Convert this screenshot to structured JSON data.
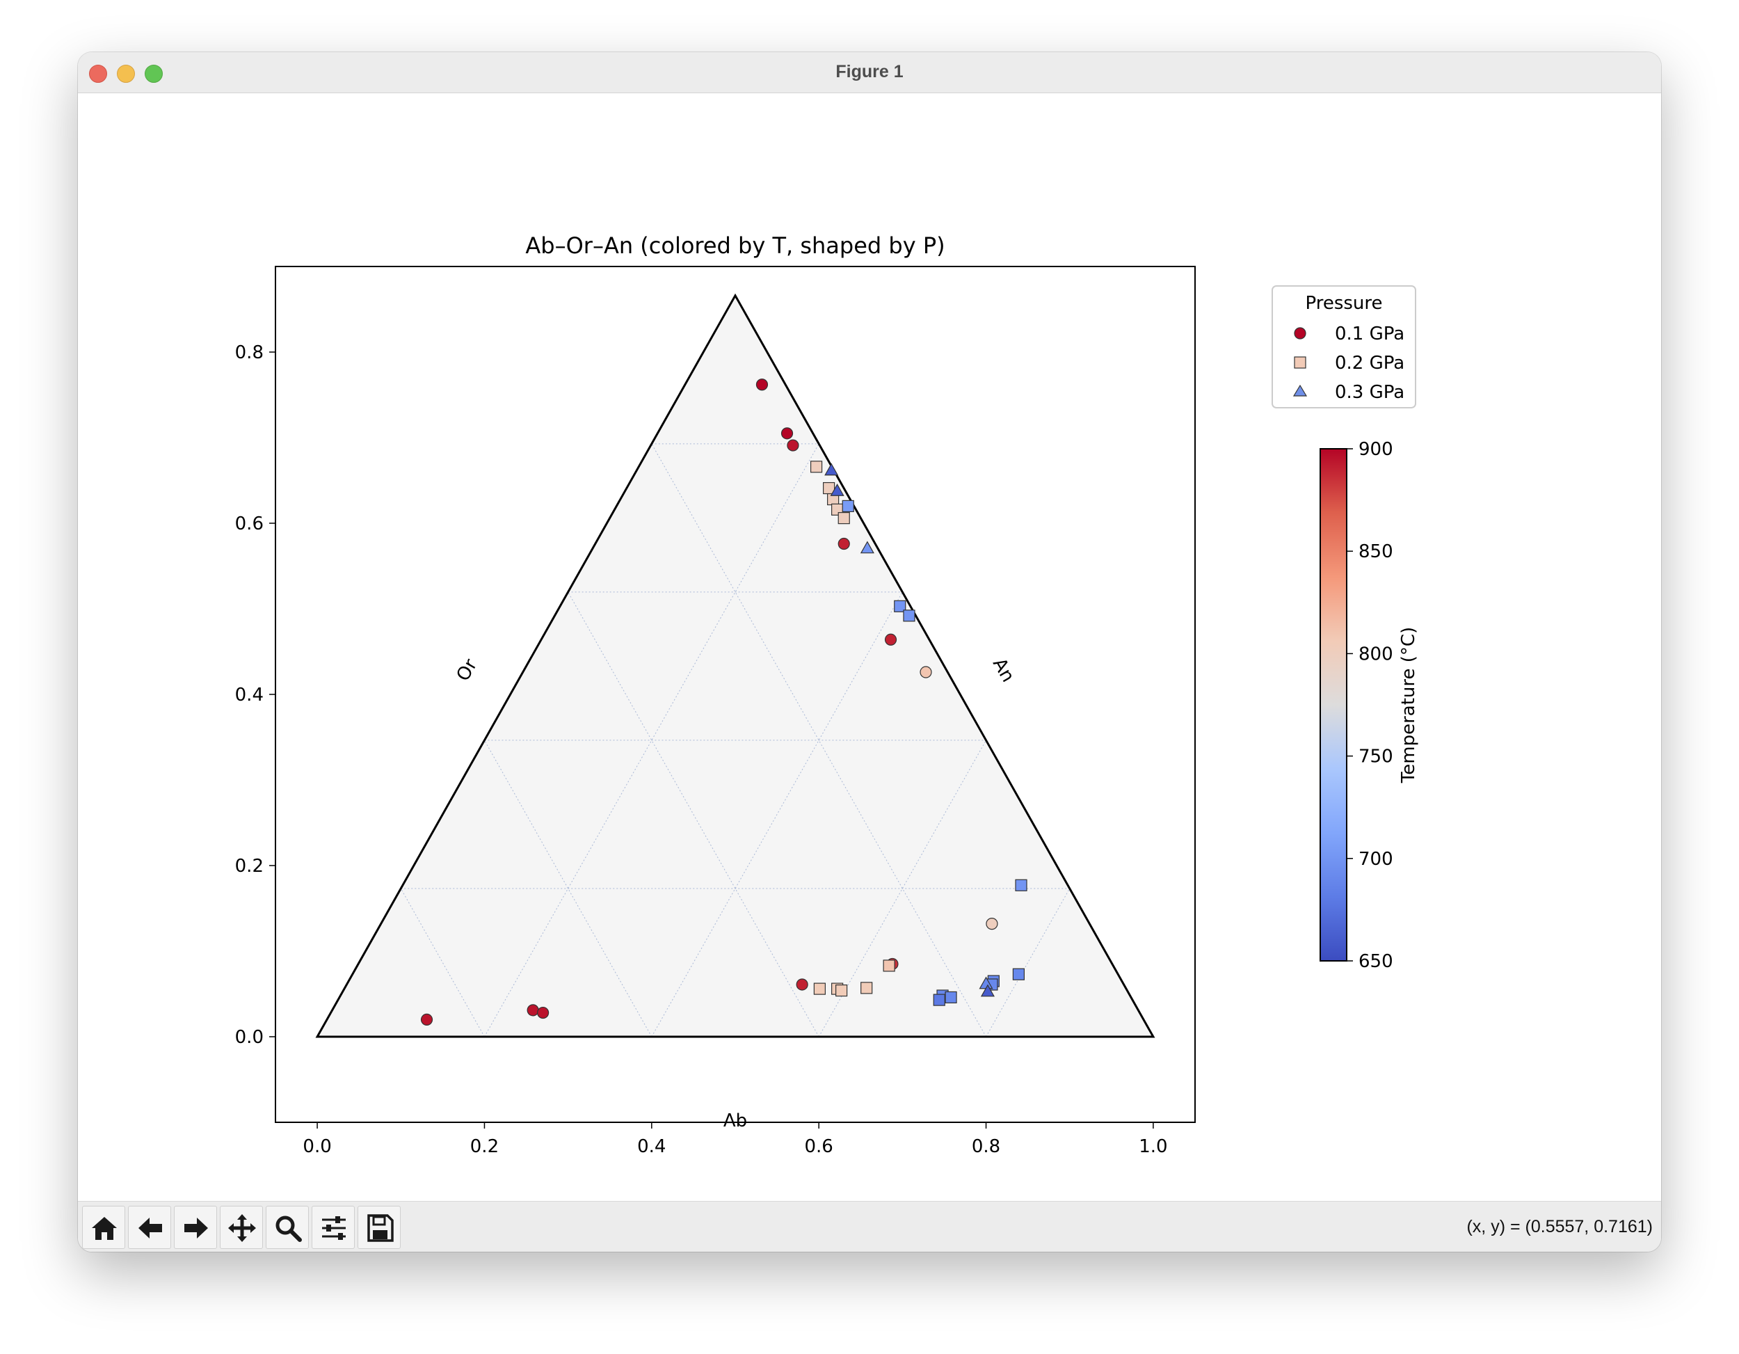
{
  "window": {
    "title": "Figure 1"
  },
  "toolbar": {
    "buttons": [
      {
        "name": "home-icon"
      },
      {
        "name": "back-arrow-icon"
      },
      {
        "name": "forward-arrow-icon"
      },
      {
        "name": "pan-move-icon"
      },
      {
        "name": "zoom-magnifier-icon"
      },
      {
        "name": "configure-subplots-icon"
      },
      {
        "name": "save-disk-icon"
      }
    ],
    "coords_readout": "(x, y) = (0.5557, 0.7161)"
  },
  "colors": {
    "p01": "#b40426",
    "p02_light": "#f2cbb7",
    "p03": "#3b4cc0",
    "axes_face": "#f5f5f5",
    "grid": "#a9b8d6"
  },
  "chart_data": {
    "type": "scatter",
    "title": "Ab–Or–An  (colored by T, shaped by P)",
    "xlim": [
      -0.05,
      1.05
    ],
    "ylim": [
      -0.1,
      0.9
    ],
    "xticks": [
      0.0,
      0.2,
      0.4,
      0.6,
      0.8,
      1.0
    ],
    "yticks": [
      0.0,
      0.2,
      0.4,
      0.6,
      0.8
    ],
    "x_tick_labels": [
      "0.0",
      "0.2",
      "0.4",
      "0.6",
      "0.8",
      "1.0"
    ],
    "y_tick_labels": [
      "0.0",
      "0.2",
      "0.4",
      "0.6",
      "0.8"
    ],
    "grid": true,
    "triangle_vertices": [
      [
        0,
        0
      ],
      [
        1,
        0
      ],
      [
        0.5,
        0.866
      ]
    ],
    "corner_labels": {
      "bottom": "Ab",
      "left": "Or",
      "right": "An"
    },
    "legend": {
      "title": "Pressure",
      "placement": "upper right outside axes",
      "entries": [
        {
          "label": "0.1 GPa",
          "marker": "circle"
        },
        {
          "label": "0.2 GPa",
          "marker": "square"
        },
        {
          "label": "0.3 GPa",
          "marker": "triangle"
        }
      ]
    },
    "colorbar": {
      "label": "Temperature (°C)",
      "min": 650,
      "max": 900,
      "ticks": [
        650,
        700,
        750,
        800,
        850,
        900
      ],
      "tick_labels": [
        "650",
        "700",
        "750",
        "800",
        "850",
        "900"
      ],
      "colormap": "coolwarm"
    },
    "series": [
      {
        "name": "0.1 GPa",
        "marker": "circle",
        "points": [
          {
            "x": 0.532,
            "y": 0.762,
            "T": 900
          },
          {
            "x": 0.562,
            "y": 0.705,
            "T": 900
          },
          {
            "x": 0.569,
            "y": 0.691,
            "T": 895
          },
          {
            "x": 0.63,
            "y": 0.576,
            "T": 890
          },
          {
            "x": 0.686,
            "y": 0.464,
            "T": 890
          },
          {
            "x": 0.728,
            "y": 0.426,
            "T": 810
          },
          {
            "x": 0.807,
            "y": 0.132,
            "T": 800
          },
          {
            "x": 0.688,
            "y": 0.085,
            "T": 885
          },
          {
            "x": 0.58,
            "y": 0.061,
            "T": 890
          },
          {
            "x": 0.258,
            "y": 0.031,
            "T": 895
          },
          {
            "x": 0.27,
            "y": 0.028,
            "T": 895
          },
          {
            "x": 0.131,
            "y": 0.02,
            "T": 895
          }
        ]
      },
      {
        "name": "0.2 GPa",
        "marker": "square",
        "points": [
          {
            "x": 0.597,
            "y": 0.666,
            "T": 800
          },
          {
            "x": 0.612,
            "y": 0.641,
            "T": 800
          },
          {
            "x": 0.617,
            "y": 0.628,
            "T": 800
          },
          {
            "x": 0.622,
            "y": 0.616,
            "T": 800
          },
          {
            "x": 0.63,
            "y": 0.606,
            "T": 800
          },
          {
            "x": 0.601,
            "y": 0.056,
            "T": 805
          },
          {
            "x": 0.622,
            "y": 0.056,
            "T": 805
          },
          {
            "x": 0.627,
            "y": 0.054,
            "T": 805
          },
          {
            "x": 0.657,
            "y": 0.057,
            "T": 805
          },
          {
            "x": 0.684,
            "y": 0.083,
            "T": 810
          },
          {
            "x": 0.635,
            "y": 0.62,
            "T": 705
          },
          {
            "x": 0.697,
            "y": 0.503,
            "T": 700
          },
          {
            "x": 0.708,
            "y": 0.492,
            "T": 700
          },
          {
            "x": 0.842,
            "y": 0.177,
            "T": 700
          },
          {
            "x": 0.839,
            "y": 0.073,
            "T": 690
          },
          {
            "x": 0.809,
            "y": 0.065,
            "T": 690
          },
          {
            "x": 0.807,
            "y": 0.061,
            "T": 690
          },
          {
            "x": 0.748,
            "y": 0.048,
            "T": 690
          },
          {
            "x": 0.758,
            "y": 0.046,
            "T": 690
          },
          {
            "x": 0.744,
            "y": 0.043,
            "T": 680
          }
        ]
      },
      {
        "name": "0.3 GPa",
        "marker": "triangle",
        "points": [
          {
            "x": 0.615,
            "y": 0.662,
            "T": 660
          },
          {
            "x": 0.622,
            "y": 0.638,
            "T": 660
          },
          {
            "x": 0.658,
            "y": 0.571,
            "T": 700
          },
          {
            "x": 0.8,
            "y": 0.062,
            "T": 690
          },
          {
            "x": 0.802,
            "y": 0.053,
            "T": 660
          }
        ]
      }
    ]
  }
}
